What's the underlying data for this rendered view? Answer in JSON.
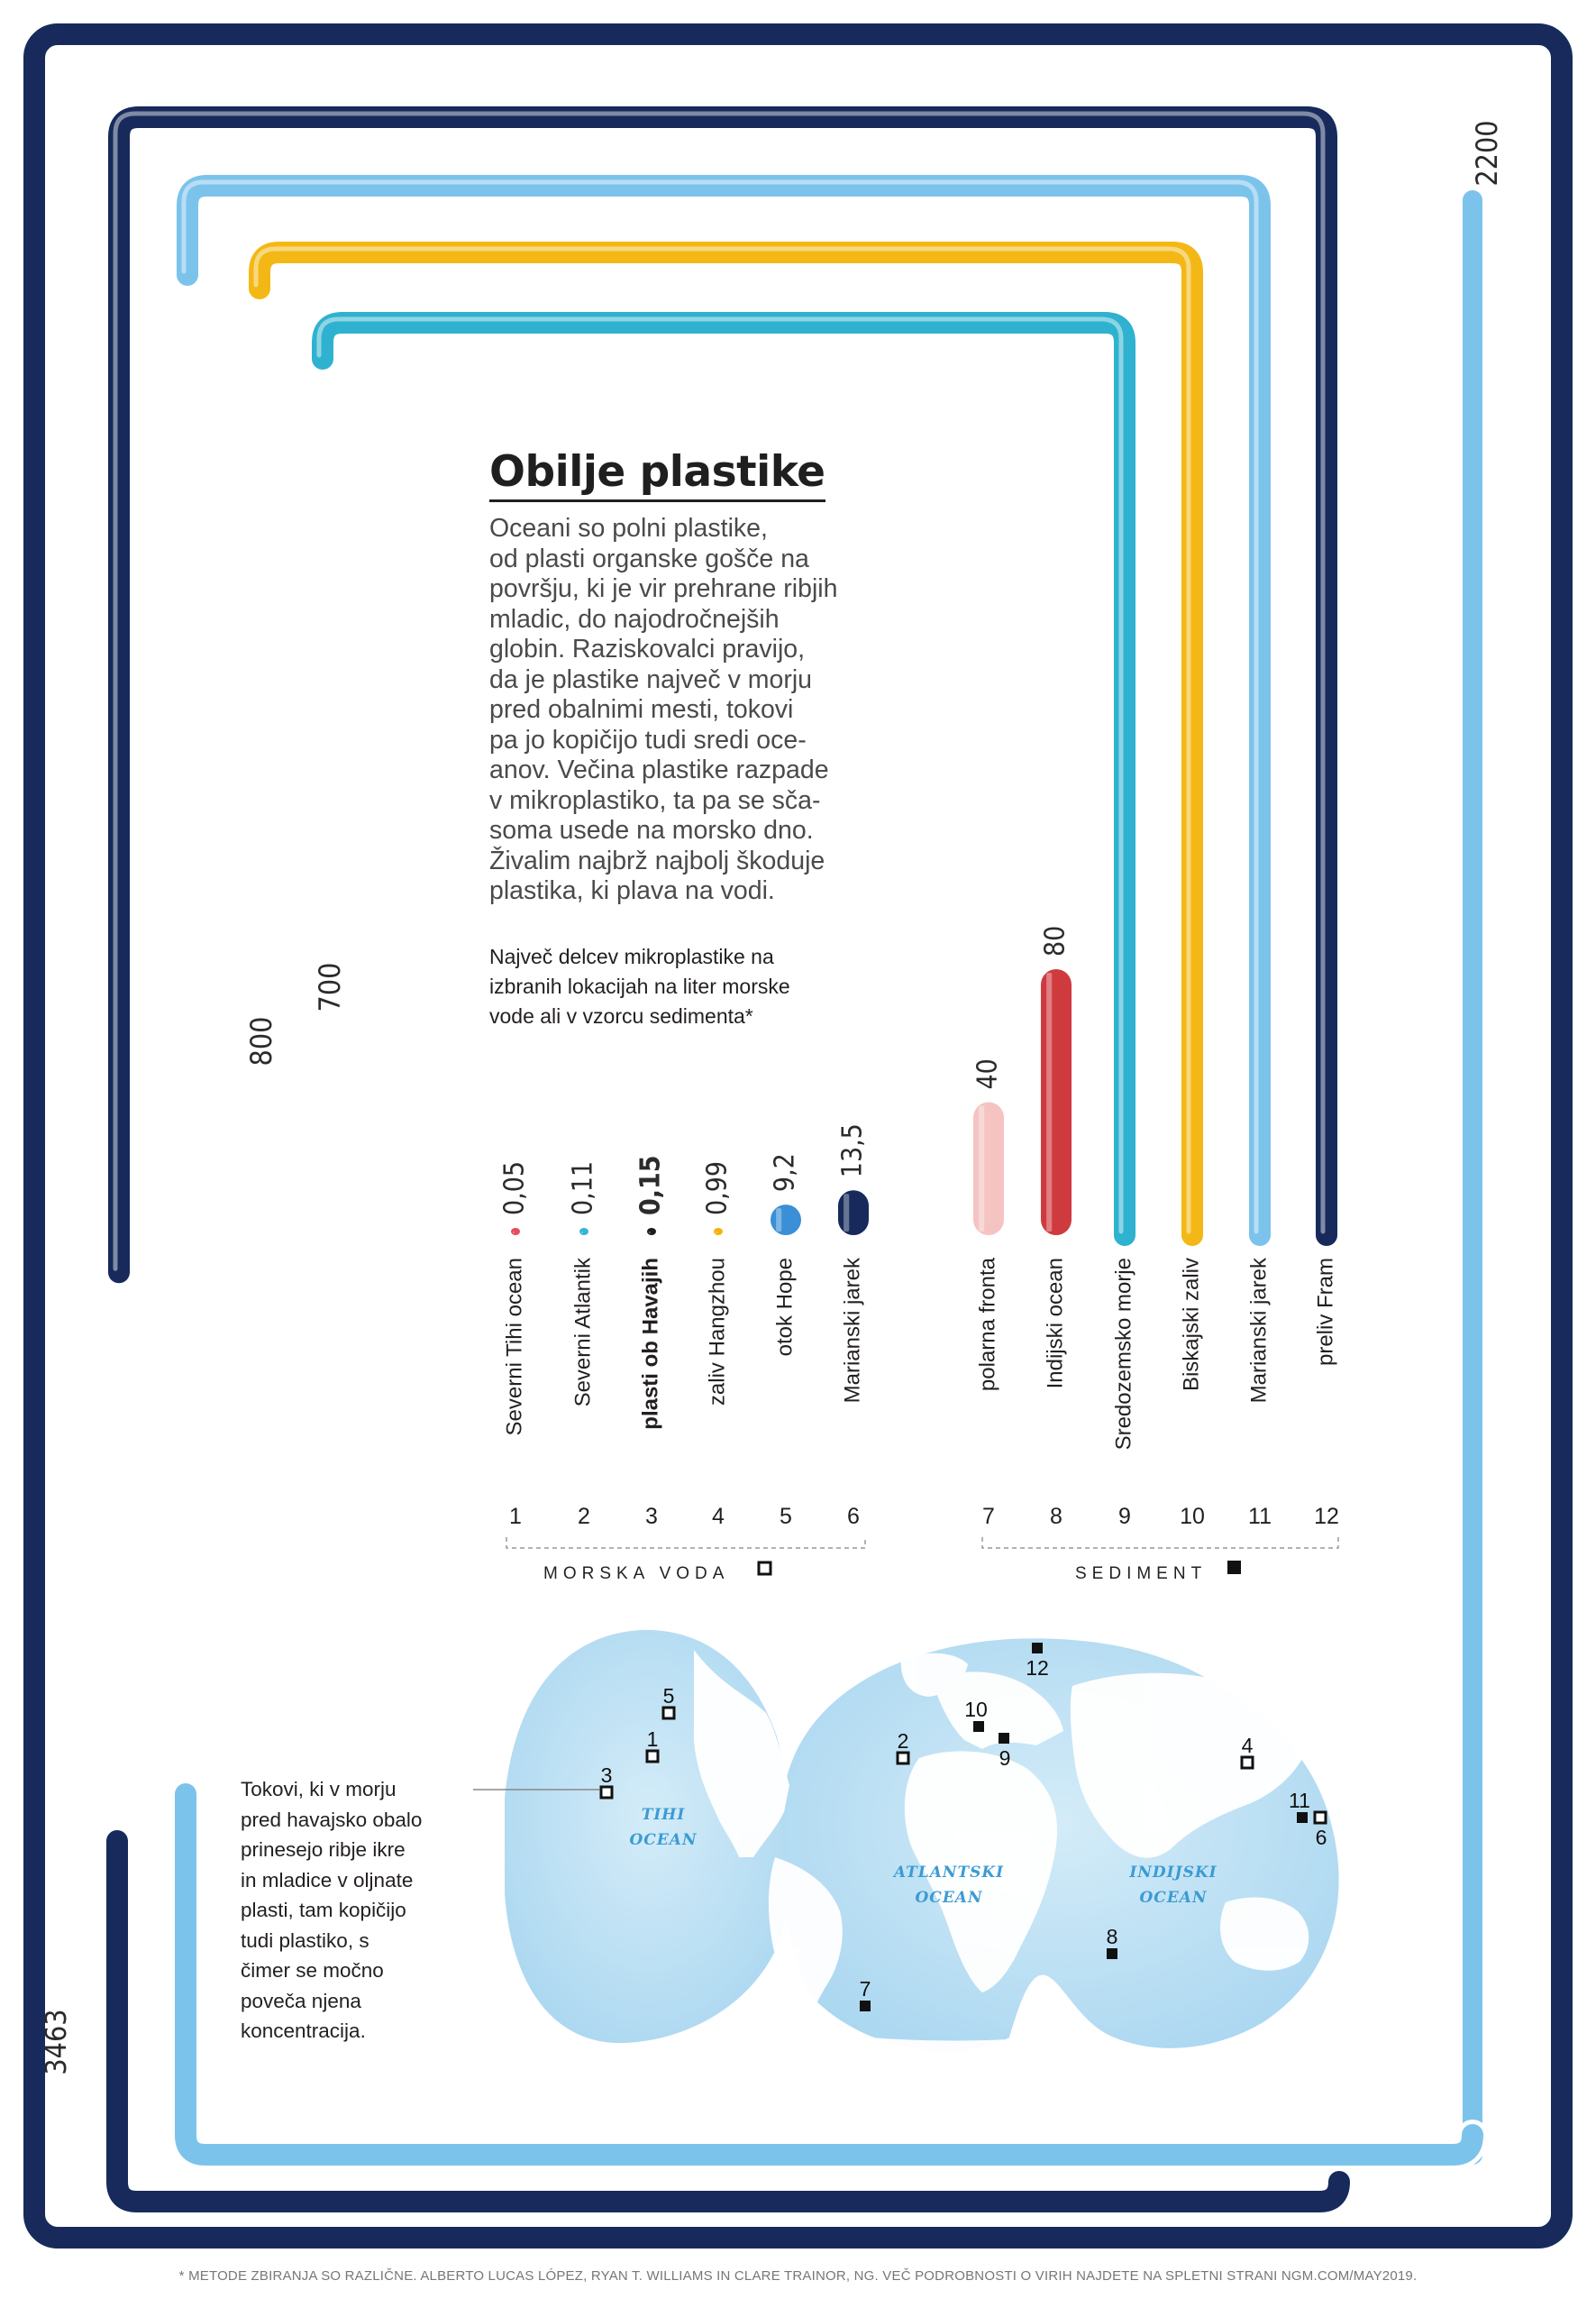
{
  "title": "Obilje plastike",
  "intro": "Oceani so polni plastike,\nod plasti organske gošče na\npovršju, ki je vir prehrane ribjih\nmladic, do najodročnejših\nglobin. Raziskovalci pravijo,\nda je plastike največ v morju\npred obalnimi mesti, tokovi\npa jo kopičijo tudi sredi oce-\nanov. Večina plastike razpade\nv mikroplastiko, ta pa se sča-\nsoma usede na morsko dno.\nŽivalim najbrž najbolj škoduje\nplastika, ki plava na vodi.",
  "subtitle": "Največ delcev mikroplastike na\nizbranih lokacijah na liter morske\nvode ali v vzorcu sedimenta*",
  "callout": "Tokovi, ki v morju\npred havajsko obalo\nprinesejo ribje ikre\nin mladice v oljnate\nplasti, tam kopičijo\ntudi plastiko, s\nčimer se močno\npoveča njena\nkoncentracija.",
  "footnote": "* METODE ZBIRANJA SO RAZLIČNE. ALBERTO LUCAS LÓPEZ, RYAN T. WILLIAMS IN CLARE TRAINOR, NG. VEČ PODROBNOSTI O VIRIH NAJDETE NA SPLETNI STRANI NGM.COM/MAY2019.",
  "groups": {
    "water_label": "MORSKA VODA",
    "sediment_label": "SEDIMENT"
  },
  "map": {
    "ocean_labels": [
      {
        "lines": [
          "TIHI",
          "OCEAN"
        ]
      },
      {
        "lines": [
          "ATLANTSKI",
          "OCEAN"
        ]
      },
      {
        "lines": [
          "INDIJSKI",
          "OCEAN"
        ]
      }
    ]
  },
  "chart_data": {
    "type": "bar",
    "title": "Obilje plastike",
    "categories": [
      "1",
      "2",
      "3",
      "4",
      "5",
      "6",
      "7",
      "8",
      "9",
      "10",
      "11",
      "12"
    ],
    "series": [
      {
        "name": "",
        "values": [
          0.05,
          0.11,
          0.15,
          0.99,
          9.2,
          13.5,
          40,
          80,
          700,
          800,
          2200,
          3463
        ]
      }
    ],
    "bars": [
      {
        "num": "1",
        "name": "Severni Tihi ocean",
        "value": 0.05,
        "label": "0,05",
        "group": "MORSKA VODA",
        "color": "#e84c5a",
        "bold": false
      },
      {
        "num": "2",
        "name": "Severni Atlantik",
        "value": 0.11,
        "label": "0,11",
        "group": "MORSKA VODA",
        "color": "#35b5d4",
        "bold": false
      },
      {
        "num": "3",
        "name": "plasti ob Havajih",
        "value": 0.15,
        "label": "0,15",
        "group": "MORSKA VODA",
        "color": "#1e1e1e",
        "bold": true
      },
      {
        "num": "4",
        "name": "zaliv Hangzhou",
        "value": 0.99,
        "label": "0,99",
        "group": "MORSKA VODA",
        "color": "#f4b20c",
        "bold": false
      },
      {
        "num": "5",
        "name": "otok Hope",
        "value": 9.2,
        "label": "9,2",
        "group": "MORSKA VODA",
        "color": "#3a8fd6",
        "bold": false
      },
      {
        "num": "6",
        "name": "Marianski jarek",
        "value": 13.5,
        "label": "13,5",
        "group": "MORSKA VODA",
        "color": "#172a5b",
        "bold": false
      },
      {
        "num": "7",
        "name": "polarna fronta",
        "value": 40,
        "label": "40",
        "group": "SEDIMENT",
        "color": "#f6c3c3",
        "bold": false
      },
      {
        "num": "8",
        "name": "Indijski ocean",
        "value": 80,
        "label": "80",
        "group": "SEDIMENT",
        "color": "#cf3a3f",
        "bold": false
      },
      {
        "num": "9",
        "name": "Sredozemsko morje",
        "value": 700,
        "label": "700",
        "group": "SEDIMENT",
        "color": "#2fb2cf",
        "bold": false
      },
      {
        "num": "10",
        "name": "Biskajski zaliv",
        "value": 800,
        "label": "800",
        "group": "SEDIMENT",
        "color": "#f3b815",
        "bold": false
      },
      {
        "num": "11",
        "name": "Marianski jarek",
        "value": 2200,
        "label": "2200",
        "group": "SEDIMENT",
        "color": "#7cc3ec",
        "bold": false
      },
      {
        "num": "12",
        "name": "preliv Fram",
        "value": 3463,
        "label": "3463",
        "group": "SEDIMENT",
        "color": "#172a5b",
        "bold": false
      }
    ],
    "map_markers": [
      {
        "num": "1",
        "type": "MORSKA VODA"
      },
      {
        "num": "2",
        "type": "MORSKA VODA"
      },
      {
        "num": "3",
        "type": "MORSKA VODA"
      },
      {
        "num": "4",
        "type": "MORSKA VODA"
      },
      {
        "num": "5",
        "type": "MORSKA VODA"
      },
      {
        "num": "6",
        "type": "MORSKA VODA"
      },
      {
        "num": "7",
        "type": "SEDIMENT"
      },
      {
        "num": "8",
        "type": "SEDIMENT"
      },
      {
        "num": "9",
        "type": "SEDIMENT"
      },
      {
        "num": "10",
        "type": "SEDIMENT"
      },
      {
        "num": "11",
        "type": "SEDIMENT"
      },
      {
        "num": "12",
        "type": "SEDIMENT"
      }
    ]
  }
}
